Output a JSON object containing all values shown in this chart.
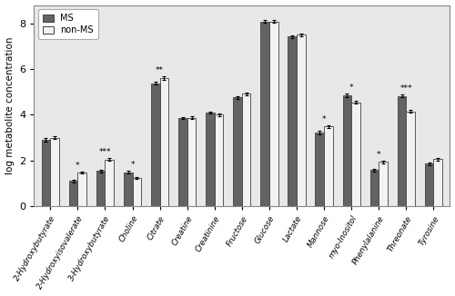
{
  "categories": [
    "2-Hydroxybutyrate",
    "2-Hydroxyisovalerate",
    "3-Hydroxybutyrate",
    "Choline",
    "Citrate",
    "Creatine",
    "Creatinine",
    "Fructose",
    "Glucose",
    "Lactate",
    "Mannose",
    "myo-Inositol",
    "Phenylalanine",
    "Threonate",
    "Tyrosine"
  ],
  "ms_values": [
    2.9,
    1.1,
    1.55,
    1.48,
    5.38,
    3.85,
    4.1,
    4.75,
    8.08,
    7.42,
    3.22,
    4.85,
    1.58,
    4.82,
    1.85
  ],
  "nonms_values": [
    2.99,
    1.47,
    2.03,
    1.23,
    5.6,
    3.87,
    4.0,
    4.92,
    8.08,
    7.5,
    3.48,
    4.55,
    1.93,
    4.15,
    2.05
  ],
  "ms_errors": [
    0.07,
    0.05,
    0.06,
    0.06,
    0.07,
    0.05,
    0.05,
    0.07,
    0.05,
    0.06,
    0.07,
    0.07,
    0.05,
    0.07,
    0.06
  ],
  "nonms_errors": [
    0.06,
    0.05,
    0.06,
    0.05,
    0.07,
    0.05,
    0.05,
    0.06,
    0.05,
    0.07,
    0.07,
    0.06,
    0.05,
    0.06,
    0.05
  ],
  "asterisks": [
    "",
    "*",
    "***",
    "*",
    "**",
    "",
    "",
    "",
    "",
    "",
    "*",
    "*",
    "*",
    "***",
    ""
  ],
  "ms_color": "#636363",
  "nonms_color": "#f2f2f2",
  "bar_edge_color": "#404040",
  "bar_width": 0.32,
  "ylabel": "log metabolite concentration",
  "ylim": [
    0,
    8.8
  ],
  "yticks": [
    0,
    2,
    4,
    6,
    8
  ],
  "legend_ms": "MS",
  "legend_nonms": "non-MS",
  "figsize": [
    5.0,
    3.26
  ],
  "dpi": 100,
  "bg_color": "#e8e8e8"
}
